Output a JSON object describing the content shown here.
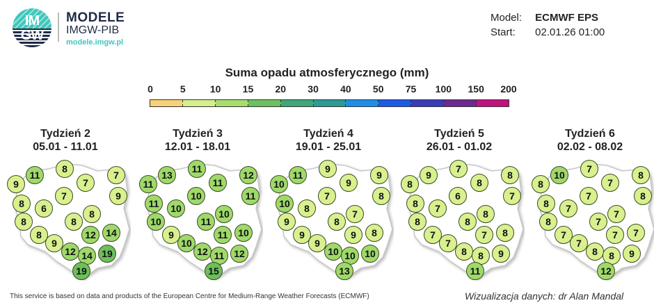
{
  "header": {
    "logo_text_top": "IM",
    "logo_text_bottom": "GW",
    "brand_title": "MODELE",
    "brand_subtitle": "IMGW-PIB",
    "brand_url": "modele.imgw.pl",
    "model_label": "Model:",
    "model_value": "ECMWF EPS",
    "start_label": "Start:",
    "start_value": "02.01.26 01:00"
  },
  "legend": {
    "title": "Suma opadu atmosferycznego (mm)",
    "ticks": [
      "0",
      "5",
      "10",
      "15",
      "20",
      "30",
      "40",
      "50",
      "75",
      "100",
      "150",
      "200"
    ],
    "colors": [
      "#f7d27a",
      "#d4ef8c",
      "#a9dc6e",
      "#6cc061",
      "#3fa77a",
      "#2d9a96",
      "#1e8fe8",
      "#1c5be6",
      "#3a3db5",
      "#6a2a8e",
      "#c0137e"
    ]
  },
  "panels": [
    {
      "title": "Tydzień 2",
      "dates": "05.01 - 11.01",
      "values": [
        11,
        8,
        7,
        9,
        7,
        9,
        8,
        7,
        6,
        8,
        8,
        8,
        12,
        14,
        8,
        9,
        12,
        14,
        19,
        19
      ]
    },
    {
      "title": "Tydzień 3",
      "dates": "12.01 - 18.01",
      "values": [
        13,
        11,
        12,
        11,
        11,
        11,
        11,
        10,
        10,
        10,
        10,
        11,
        11,
        10,
        9,
        10,
        12,
        11,
        12,
        15
      ]
    },
    {
      "title": "Tydzień 4",
      "dates": "19.01 - 25.01",
      "values": [
        11,
        9,
        9,
        10,
        9,
        8,
        10,
        7,
        8,
        7,
        9,
        8,
        9,
        8,
        9,
        9,
        10,
        10,
        10,
        13
      ]
    },
    {
      "title": "Tydzień 5",
      "dates": "26.01 - 01.02",
      "values": [
        9,
        7,
        8,
        8,
        8,
        7,
        8,
        6,
        7,
        8,
        8,
        8,
        7,
        8,
        7,
        7,
        8,
        8,
        9,
        11
      ]
    },
    {
      "title": "Tydzień 6",
      "dates": "02.02 - 08.02",
      "values": [
        10,
        7,
        8,
        8,
        7,
        8,
        8,
        7,
        7,
        7,
        8,
        7,
        7,
        7,
        7,
        7,
        8,
        8,
        9,
        12
      ]
    }
  ],
  "footer": {
    "source": "This service is based on data and products of the European Centre for Medium-Range Weather Forecasts (ECMWF)",
    "credit": "Wizualizacja danych: dr Alan Mandal"
  }
}
